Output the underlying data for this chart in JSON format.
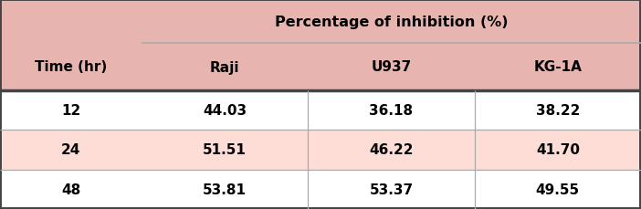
{
  "header_group": "Percentage of inhibition (%)",
  "col_headers": [
    "Time (hr)",
    "Raji",
    "U937",
    "KG-1A"
  ],
  "rows": [
    [
      "12",
      "44.03",
      "36.18",
      "38.22"
    ],
    [
      "24",
      "51.51",
      "46.22",
      "41.70"
    ],
    [
      "48",
      "53.81",
      "53.37",
      "49.55"
    ]
  ],
  "header_bg": "#E8B4B0",
  "row_colors": [
    "#FFFFFF",
    "#FDDDD5",
    "#FFFFFF"
  ],
  "outer_border_color": "#444444",
  "inner_line_color": "#AAAAAA",
  "header_text_color": "#000000",
  "cell_text_color": "#000000",
  "figwidth": 7.02,
  "figheight": 2.3,
  "dpi": 100
}
